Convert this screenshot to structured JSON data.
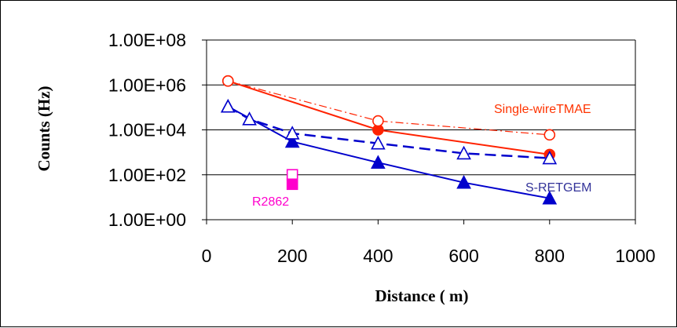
{
  "chart_data": {
    "type": "scatter",
    "xlabel": "Distance ( m)",
    "ylabel": "Counts (Hz)",
    "xlim": [
      0,
      1000
    ],
    "ylim": [
      1,
      100000000
    ],
    "yscale": "log",
    "grid": "horizontal",
    "x_ticks": [
      "0",
      "200",
      "400",
      "600",
      "800",
      "1000"
    ],
    "y_ticks": [
      "1.00E+00",
      "1.00E+02",
      "1.00E+04",
      "1.00E+06",
      "1.00E+08"
    ],
    "annotations": [
      {
        "text": "Single-wireTMAE",
        "color": "#ff3300"
      },
      {
        "text": "S-RETGEM",
        "color": "#333399"
      },
      {
        "text": "R2862",
        "color": "#ff00cc"
      }
    ],
    "series": [
      {
        "marker": "filled-circle",
        "line": "solid",
        "color": "#ff2200",
        "x": [
          50,
          400,
          800
        ],
        "y": [
          1500000,
          10000,
          800
        ]
      },
      {
        "marker": "open-circle",
        "line": "dash-dot",
        "color": "#ff2200",
        "x": [
          50,
          400,
          800
        ],
        "y": [
          1500000,
          25000,
          6000
        ]
      },
      {
        "marker": "filled-triangle",
        "line": "solid",
        "color": "#0000cc",
        "x": [
          50,
          200,
          400,
          600,
          800
        ],
        "y": [
          110000,
          3000,
          350,
          45,
          9
        ]
      },
      {
        "marker": "open-triangle",
        "line": "dashed",
        "color": "#0000cc",
        "x": [
          50,
          100,
          200,
          400,
          600,
          800
        ],
        "y": [
          110000,
          30000,
          7000,
          2500,
          900,
          550
        ]
      },
      {
        "marker": "open-square",
        "line": "none",
        "color": "#ff00cc",
        "x": [
          200
        ],
        "y": [
          100
        ]
      },
      {
        "marker": "filled-square",
        "line": "none",
        "color": "#ff00cc",
        "x": [
          200
        ],
        "y": [
          38
        ]
      }
    ]
  }
}
